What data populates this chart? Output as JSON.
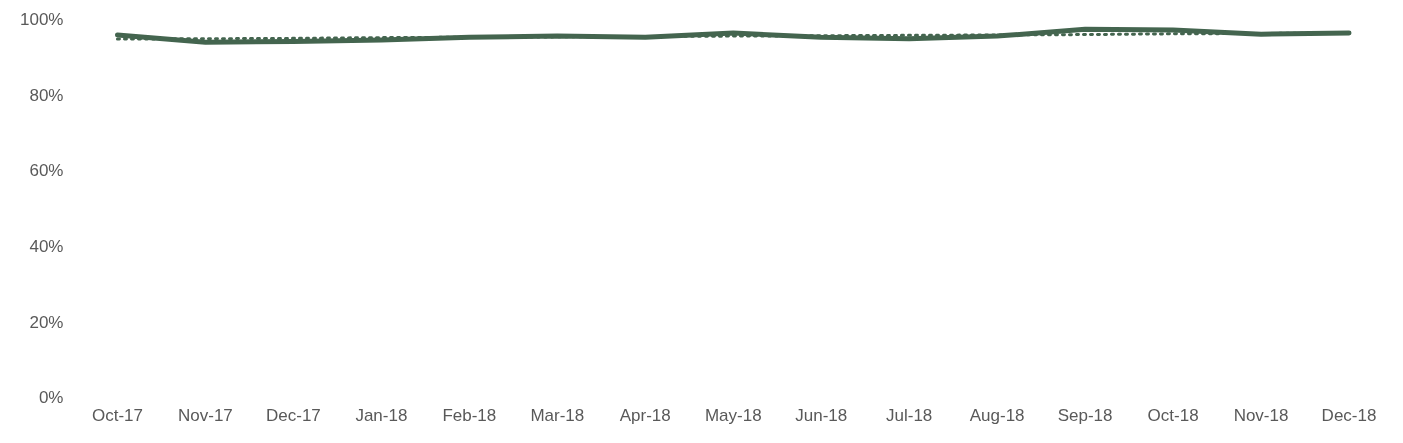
{
  "chart_data": {
    "type": "line",
    "categories": [
      "Oct-17",
      "Nov-17",
      "Dec-17",
      "Jan-18",
      "Feb-18",
      "Mar-18",
      "Apr-18",
      "May-18",
      "Jun-18",
      "Jul-18",
      "Aug-18",
      "Sep-18",
      "Oct-18",
      "Nov-18",
      "Dec-18"
    ],
    "series": [
      {
        "color": "#44654f",
        "line_style": "solid",
        "values": [
          96.1,
          94.2,
          94.4,
          94.8,
          95.5,
          95.8,
          95.5,
          96.6,
          95.5,
          95.1,
          95.8,
          97.6,
          97.4,
          96.3,
          96.6
        ]
      },
      {
        "color": "#44654f",
        "line_style": "dotted",
        "values": [
          95.0,
          95.1,
          95.2,
          95.4,
          95.5,
          95.6,
          95.7,
          95.8,
          95.9,
          96.0,
          96.1,
          96.2,
          96.4,
          96.5,
          96.6
        ]
      }
    ],
    "ylim": [
      0,
      100
    ],
    "yticks": [
      {
        "value": 0,
        "label": "0%"
      },
      {
        "value": 20,
        "label": "20%"
      },
      {
        "value": 40,
        "label": "40%"
      },
      {
        "value": 60,
        "label": "60%"
      },
      {
        "value": 80,
        "label": "80%"
      },
      {
        "value": 100,
        "label": "100%"
      }
    ],
    "grid": false,
    "legend": false,
    "marker": "none"
  }
}
